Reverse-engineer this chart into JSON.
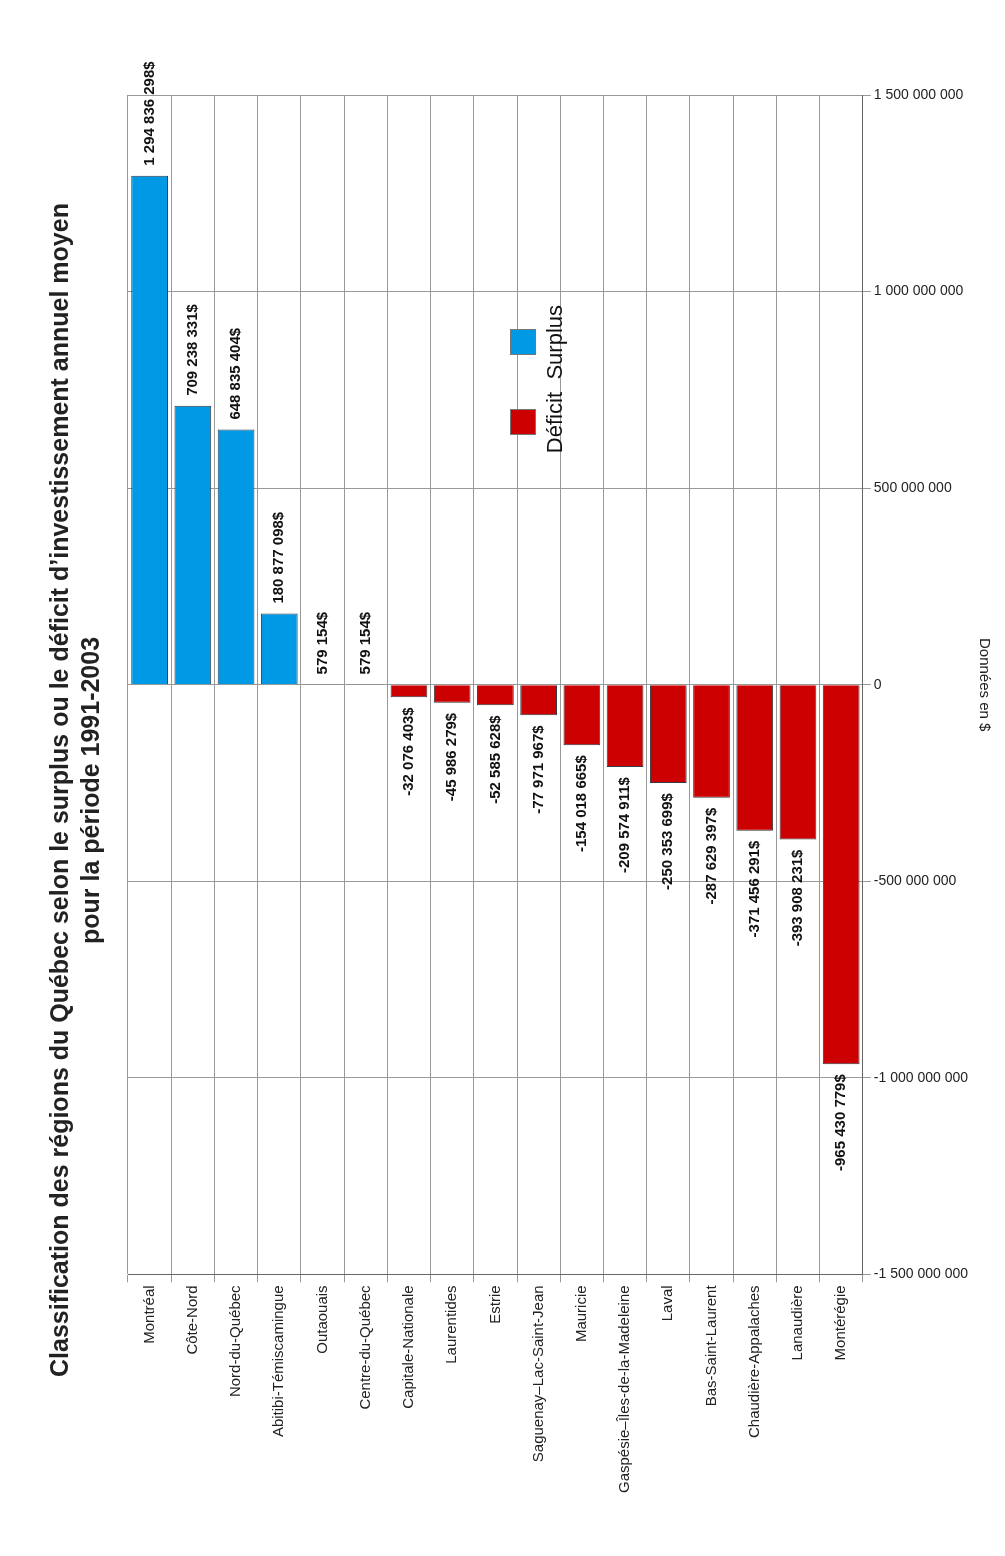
{
  "chart_data": {
    "type": "bar",
    "title": "Classification des régions du Québec selon le surplus ou le déficit d’investissement annuel moyen pour la période 1991-2003",
    "ylabel": "Données en $",
    "categories": [
      "Montréal",
      "Côte-Nord",
      "Nord-du-Québec",
      "Abitibi-Témiscamingue",
      "Outaouais",
      "Centre-du-Québec",
      "Capitale-Nationale",
      "Laurentides",
      "Estrie",
      "Saguenay–Lac-Saint-Jean",
      "Mauricie",
      "Gaspésie–Îles-de-la-Madeleine",
      "Laval",
      "Bas-Saint-Laurent",
      "Chaudière-Appalaches",
      "Lanaudière",
      "Montérégie"
    ],
    "series": [
      {
        "name": "Surplus",
        "color": "#0099e6",
        "values": [
          1294836298,
          709238331,
          648835404,
          180877098,
          579154,
          579154,
          null,
          null,
          null,
          null,
          null,
          null,
          null,
          null,
          null,
          null,
          null
        ],
        "value_labels": [
          "1 294 836 298$",
          "709 238 331$",
          "648 835 404$",
          "180 877 098$",
          "579 154$",
          "579 154$",
          null,
          null,
          null,
          null,
          null,
          null,
          null,
          null,
          null,
          null,
          null
        ]
      },
      {
        "name": "Déficit",
        "color": "#cc0000",
        "values": [
          null,
          null,
          null,
          null,
          null,
          null,
          -32076403,
          -45986279,
          -52585628,
          -77971967,
          -154018665,
          -209574911,
          -250353699,
          -287629397,
          -371456291,
          -393908231,
          -965430779
        ],
        "value_labels": [
          null,
          null,
          null,
          null,
          null,
          null,
          "-32 076 403$",
          "-45 986 279$",
          "-52 585 628$",
          "-77 971 967$",
          "-154 018 665$",
          "-209 574 911$",
          "-250 353 699$",
          "-287 629 397$",
          "-371 456 291$",
          "-393 908 231$",
          "-965 430 779$"
        ]
      }
    ],
    "ylim": [
      -1500000000,
      1500000000
    ],
    "yticks": [
      {
        "value": -1500000000,
        "label": "-1 500 000 000"
      },
      {
        "value": -1000000000,
        "label": "-1 000 000 000"
      },
      {
        "value": -500000000,
        "label": "-500 000 000"
      },
      0,
      {
        "value": 500000000,
        "label": "500 000 000"
      },
      {
        "value": 1000000000,
        "label": "1 000 000 000"
      },
      {
        "value": 1500000000,
        "label": "1 500 000 000"
      }
    ],
    "grid": true,
    "legend": "top"
  }
}
